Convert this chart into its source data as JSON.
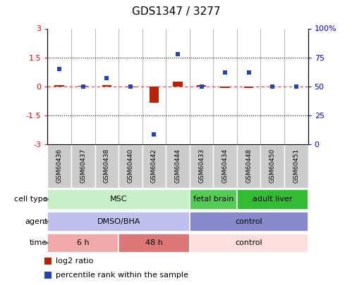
{
  "title": "GDS1347 / 3277",
  "samples": [
    "GSM60436",
    "GSM60437",
    "GSM60438",
    "GSM60440",
    "GSM60442",
    "GSM60444",
    "GSM60433",
    "GSM60434",
    "GSM60448",
    "GSM60450",
    "GSM60451"
  ],
  "log2_ratio": [
    0.05,
    0.02,
    0.05,
    -0.05,
    -0.85,
    0.25,
    0.05,
    -0.1,
    -0.08,
    0.0,
    0.0
  ],
  "percentile_rank": [
    65,
    50,
    57,
    50,
    8,
    78,
    50,
    62,
    62,
    50,
    50
  ],
  "cell_type_groups": [
    {
      "label": "MSC",
      "start": 0,
      "end": 5,
      "color": "#c8f0c8"
    },
    {
      "label": "fetal brain",
      "start": 6,
      "end": 7,
      "color": "#55cc55"
    },
    {
      "label": "adult liver",
      "start": 8,
      "end": 10,
      "color": "#33bb33"
    }
  ],
  "agent_groups": [
    {
      "label": "DMSO/BHA",
      "start": 0,
      "end": 5,
      "color": "#c0c0ee"
    },
    {
      "label": "control",
      "start": 6,
      "end": 10,
      "color": "#8888cc"
    }
  ],
  "time_groups": [
    {
      "label": "6 h",
      "start": 0,
      "end": 2,
      "color": "#f0aaaa"
    },
    {
      "label": "48 h",
      "start": 3,
      "end": 5,
      "color": "#dd7777"
    },
    {
      "label": "control",
      "start": 6,
      "end": 10,
      "color": "#ffdede"
    }
  ],
  "ylim_left": [
    -3,
    3
  ],
  "ylim_right": [
    0,
    100
  ],
  "yticks_left": [
    -3,
    -1.5,
    0,
    1.5,
    3
  ],
  "yticks_right": [
    0,
    25,
    50,
    75,
    100
  ],
  "bar_color_red": "#bb2200",
  "bar_color_blue": "#2244bb",
  "label_log2": "log2 ratio",
  "label_pct": "percentile rank within the sample",
  "row_labels": [
    "cell type",
    "agent",
    "time"
  ],
  "bg_sample_label": "#cccccc"
}
